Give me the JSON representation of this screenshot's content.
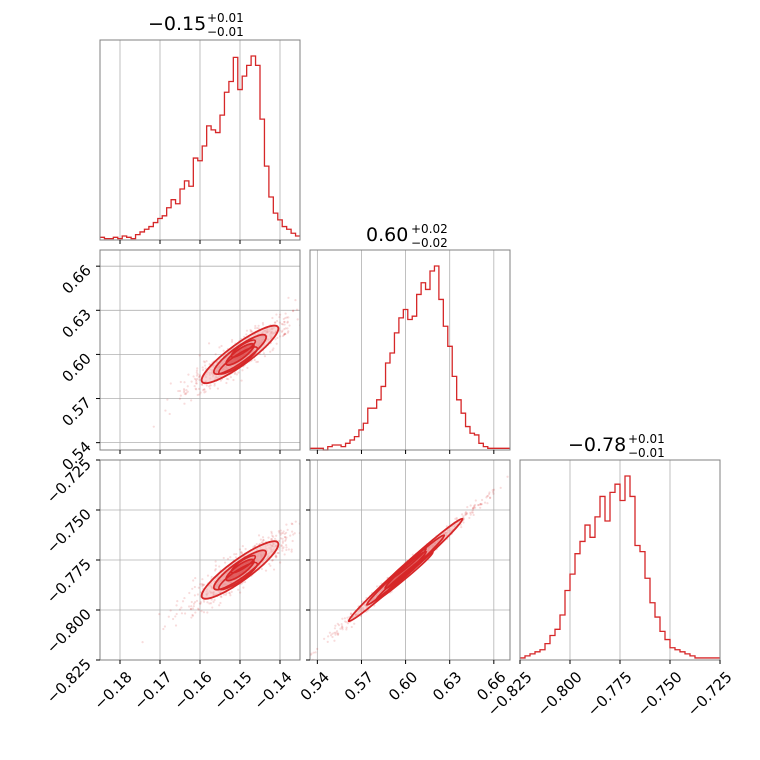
{
  "colors": {
    "series": "#d62728",
    "fill_outer": "#f4b6b7",
    "fill_inner": "#ea8a8c",
    "grid": "#b0b0b0",
    "frame": "#808080"
  },
  "chart_data": {
    "type": "corner",
    "grid": true,
    "parameters": [
      {
        "range": [
          -0.185,
          -0.135
        ],
        "ticks": [
          -0.18,
          -0.17,
          -0.16,
          -0.15,
          -0.14
        ],
        "tick_labels": [
          "−0.18",
          "−0.17",
          "−0.16",
          "−0.15",
          "−0.14"
        ]
      },
      {
        "range": [
          0.535,
          0.671
        ],
        "ticks": [
          0.54,
          0.57,
          0.6,
          0.63,
          0.66
        ],
        "tick_labels": [
          "0.54",
          "0.57",
          "0.60",
          "0.63",
          "0.66"
        ]
      },
      {
        "range": [
          -0.825,
          -0.725
        ],
        "ticks": [
          -0.825,
          -0.8,
          -0.775,
          -0.75,
          -0.725
        ],
        "tick_labels": [
          "−0.825",
          "−0.800",
          "−0.775",
          "−0.750",
          "−0.725"
        ]
      }
    ],
    "titles": [
      {
        "main": "−0.15",
        "plus": "+0.01",
        "minus": "−0.01"
      },
      {
        "main": "0.60",
        "plus": "+0.02",
        "minus": "−0.02"
      },
      {
        "main": "−0.78",
        "plus": "+0.01",
        "minus": "−0.01"
      }
    ],
    "histograms": [
      {
        "param": 0,
        "bin_edges": [
          -0.185,
          -0.135
        ],
        "counts": [
          2,
          1,
          1,
          2,
          1,
          3,
          2,
          1,
          4,
          6,
          8,
          10,
          13,
          16,
          18,
          24,
          30,
          27,
          38,
          44,
          40,
          61,
          59,
          70,
          85,
          82,
          80,
          93,
          110,
          118,
          136,
          112,
          122,
          130,
          137,
          130,
          90,
          55,
          32,
          20,
          15,
          10,
          8,
          5,
          3
        ]
      },
      {
        "param": 1,
        "bin_edges": [
          0.535,
          0.671
        ],
        "counts": [
          1,
          1,
          1,
          0,
          2,
          3,
          3,
          2,
          4,
          6,
          8,
          12,
          16,
          25,
          25,
          30,
          38,
          52,
          58,
          70,
          79,
          84,
          78,
          80,
          93,
          100,
          96,
          107,
          110,
          90,
          74,
          62,
          44,
          30,
          22,
          14,
          10,
          9,
          4,
          2,
          1,
          1,
          1,
          1,
          1
        ]
      },
      {
        "param": 2,
        "bin_edges": [
          -0.825,
          -0.725
        ],
        "counts": [
          1,
          2,
          3,
          4,
          5,
          8,
          12,
          15,
          22,
          34,
          42,
          52,
          58,
          66,
          60,
          70,
          80,
          68,
          82,
          86,
          78,
          90,
          80,
          56,
          53,
          40,
          28,
          21,
          14,
          10,
          6,
          5,
          4,
          3,
          2,
          1,
          1,
          1,
          1,
          1
        ]
      }
    ],
    "pairs": [
      {
        "x_param": 0,
        "y_param": 1,
        "shape": "tilted-ellipse",
        "center": [
          -0.15,
          0.6
        ],
        "contour_levels": [
          0.39,
          0.86,
          0.99
        ]
      },
      {
        "x_param": 0,
        "y_param": 2,
        "shape": "tilted-ellipse",
        "center": [
          -0.15,
          -0.78
        ],
        "contour_levels": [
          0.39,
          0.86,
          0.99
        ]
      },
      {
        "x_param": 1,
        "y_param": 2,
        "shape": "narrow-linear",
        "center": [
          0.6,
          -0.78
        ],
        "contour_levels": [
          0.39,
          0.86,
          0.99
        ]
      }
    ]
  }
}
